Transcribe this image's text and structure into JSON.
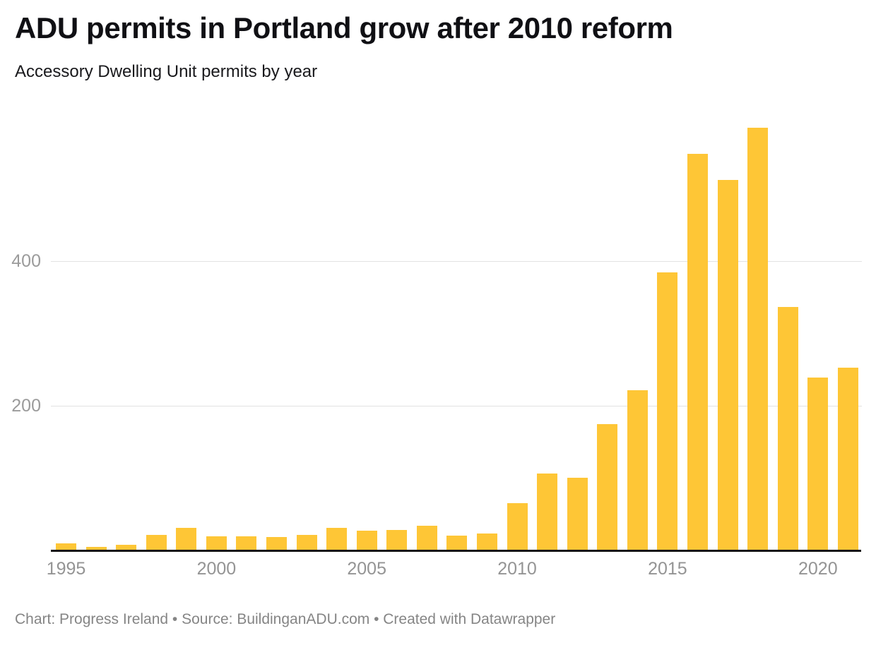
{
  "header": {
    "title": "ADU permits in Portland grow after 2010 reform",
    "subtitle": "Accessory Dwelling Unit permits by year"
  },
  "footer": {
    "text": "Chart: Progress Ireland • Source: BuildinganADU.com • Created with Datawrapper"
  },
  "chart_data": {
    "type": "bar",
    "title": "ADU permits in Portland grow after 2010 reform",
    "subtitle": "Accessory Dwelling Unit permits by year",
    "xlabel": "",
    "ylabel": "",
    "categories": [
      1995,
      1996,
      1997,
      1998,
      1999,
      2000,
      2001,
      2002,
      2003,
      2004,
      2005,
      2006,
      2007,
      2008,
      2009,
      2010,
      2011,
      2012,
      2013,
      2014,
      2015,
      2016,
      2017,
      2018,
      2019,
      2020,
      2021
    ],
    "values": [
      10,
      5,
      8,
      22,
      31,
      20,
      20,
      19,
      22,
      31,
      27,
      28,
      34,
      21,
      23,
      65,
      106,
      101,
      175,
      222,
      385,
      549,
      512,
      585,
      337,
      239,
      253
    ],
    "x_tick_labels": [
      "1995",
      "2000",
      "2005",
      "2010",
      "2015",
      "2020"
    ],
    "y_tick_values": [
      200,
      400
    ],
    "ylim": [
      0,
      610
    ],
    "grid": "horizontal",
    "legend": "none",
    "bar_color": "#fec636",
    "axis_line_color": "#161616",
    "gridline_color": "#e2e2e2",
    "tick_label_color": "#9b9b9b"
  }
}
